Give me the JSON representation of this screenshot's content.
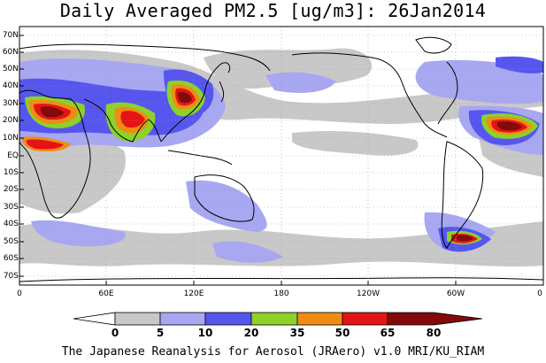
{
  "title": "Daily Averaged PM2.5 [ug/m3]: 26Jan2014",
  "footer": "The Japanese Reanalysis for Aerosol (JRAero) v1.0 MRI/KU_RIAM",
  "map": {
    "lat_labels": [
      "70N",
      "60N",
      "50N",
      "40N",
      "30N",
      "20N",
      "10N",
      "EQ",
      "10S",
      "20S",
      "30S",
      "40S",
      "50S",
      "60S",
      "70S"
    ],
    "lon_labels": [
      "0",
      "60E",
      "120E",
      "180",
      "120W",
      "60W",
      "0"
    ]
  },
  "colorbar": {
    "labels": [
      "0",
      "5",
      "10",
      "20",
      "35",
      "50",
      "65",
      "80"
    ],
    "colors": [
      "#ffffff",
      "#c8c8c8",
      "#a7a7f2",
      "#5656ee",
      "#8cd22a",
      "#f08c14",
      "#e41414",
      "#820a0a"
    ]
  }
}
